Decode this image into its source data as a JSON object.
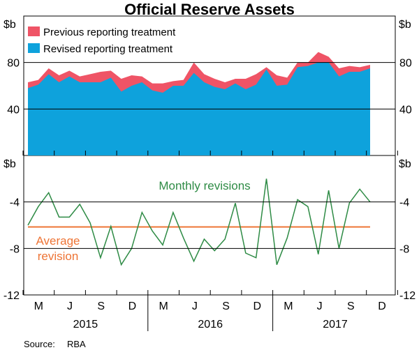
{
  "chart_data": {
    "type": "area",
    "title": "Official Reserve Assets",
    "source_label": "Source:",
    "source_value": "RBA",
    "x_month_labels": [
      "M",
      "J",
      "S",
      "D",
      "M",
      "J",
      "S",
      "D",
      "M",
      "J",
      "S",
      "D"
    ],
    "x_year_labels": [
      "2015",
      "2016",
      "2017"
    ],
    "panels": [
      {
        "name": "top",
        "unit_label": "$b",
        "ylim": [
          0,
          120
        ],
        "yticks": [
          40,
          80
        ],
        "ytick_labels": [
          "40",
          "80"
        ],
        "legend": [
          {
            "name": "Previous reporting treatment",
            "color": "#ef5466"
          },
          {
            "name": "Revised reporting treatment",
            "color": "#0ea2dc"
          }
        ],
        "series": [
          {
            "name": "Previous reporting treatment",
            "color": "#ef5466",
            "values": [
              63,
              65,
              75,
              69,
              73,
              68,
              70,
              72,
              73,
              66,
              69,
              68,
              62,
              62,
              64,
              65,
              80,
              70,
              66,
              63,
              66,
              66,
              70,
              76,
              69,
              67,
              80,
              80,
              89,
              85,
              75,
              77,
              76,
              78
            ]
          },
          {
            "name": "Revised reporting treatment",
            "color": "#0ea2dc",
            "values": [
              58,
              61,
              70,
              63,
              68,
              63,
              63,
              63,
              67,
              55,
              60,
              63,
              56,
              54,
              60,
              60,
              71,
              63,
              59,
              57,
              62,
              57,
              61,
              74,
              60,
              61,
              76,
              77,
              80,
              80,
              68,
              72,
              72,
              75
            ]
          }
        ]
      },
      {
        "name": "bottom",
        "unit_label": "$b",
        "ylim": [
          -12,
          0
        ],
        "yticks": [
          -12,
          -8,
          -4
        ],
        "ytick_labels": [
          "-12",
          "-8",
          "-4"
        ],
        "series": [
          {
            "name": "Monthly revisions",
            "color": "#2e8b45",
            "values": [
              -6.0,
              -4.4,
              -3.2,
              -5.3,
              -5.3,
              -4.2,
              -5.8,
              -8.8,
              -6.1,
              -9.4,
              -8.0,
              -4.9,
              -6.5,
              -7.7,
              -4.9,
              -7.1,
              -9.1,
              -7.2,
              -8.2,
              -7.2,
              -4.1,
              -8.4,
              -8.8,
              -2.0,
              -9.4,
              -7.1,
              -3.8,
              -4.4,
              -8.5,
              -3.0,
              -8.0,
              -4.1,
              -2.9,
              -4.0
            ]
          },
          {
            "name": "Average revision",
            "color": "#ee7435",
            "constant": -6.15
          }
        ],
        "annotations": [
          {
            "text": "Monthly revisions",
            "color": "#2e8b45"
          },
          {
            "text": "Average",
            "color": "#ee7435"
          },
          {
            "text": "revision",
            "color": "#ee7435"
          }
        ]
      }
    ]
  }
}
